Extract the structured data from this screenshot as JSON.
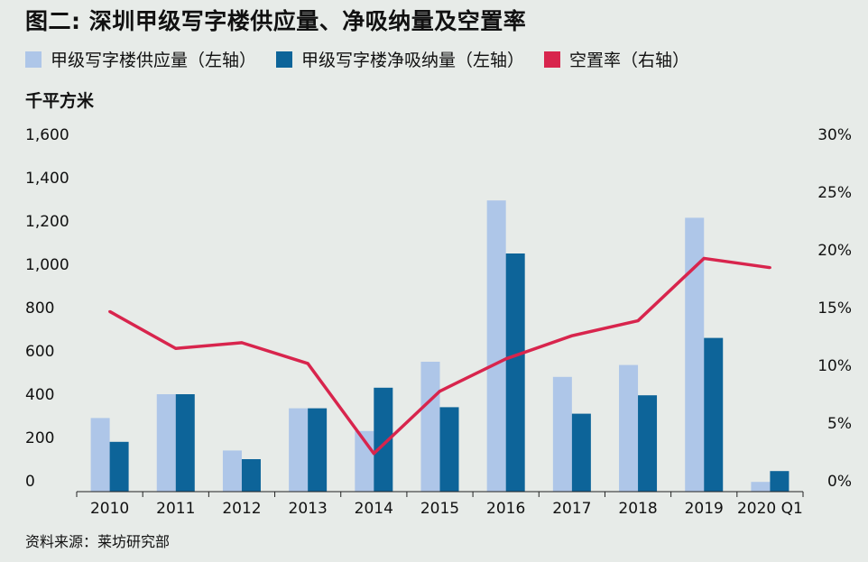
{
  "chart_data": {
    "type": "bar",
    "title": "图二: 深圳甲级写字楼供应量、净吸纳量及空置率",
    "ylabel": "千平方米",
    "categories": [
      "2010",
      "2011",
      "2012",
      "2013",
      "2014",
      "2015",
      "2016",
      "2017",
      "2018",
      "2019",
      "2020 Q1"
    ],
    "series": [
      {
        "name": "甲级写字楼供应量（左轴）",
        "kind": "bar",
        "axis": "left",
        "color": "#aec6e8",
        "values": [
          340,
          450,
          190,
          385,
          280,
          600,
          1345,
          530,
          585,
          1265,
          45
        ]
      },
      {
        "name": "甲级写字楼净吸纳量（左轴）",
        "kind": "bar",
        "axis": "left",
        "color": "#0d6499",
        "values": [
          230,
          450,
          150,
          385,
          480,
          390,
          1100,
          360,
          445,
          710,
          95
        ]
      },
      {
        "name": "空置率（右轴）",
        "kind": "line",
        "axis": "right",
        "color": "#d8254d",
        "values": [
          15.6,
          12.4,
          12.9,
          11.1,
          3.3,
          8.7,
          11.5,
          13.5,
          14.8,
          20.2,
          19.4
        ]
      }
    ],
    "ylim_left": [
      0,
      1600
    ],
    "ylim_right": [
      0,
      30
    ],
    "yticks_left": [
      "0",
      "200",
      "400",
      "600",
      "800",
      "1,000",
      "1,200",
      "1,400",
      "1,600"
    ],
    "yticks_right": [
      "0%",
      "5%",
      "10%",
      "15%",
      "20%",
      "25%",
      "30%"
    ],
    "grid": false,
    "legend_position": "top-left"
  },
  "source": "资料来源：莱坊研究部"
}
